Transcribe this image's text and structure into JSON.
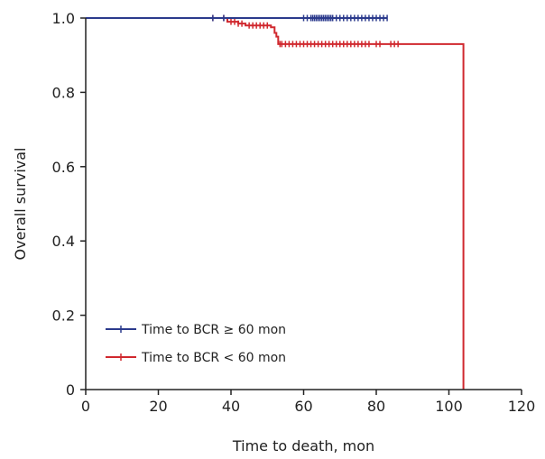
{
  "chart_data": {
    "type": "line",
    "xlabel": "Time to death, mon",
    "ylabel": "Overall survival",
    "xlim": [
      0,
      120
    ],
    "ylim": [
      0,
      1.0
    ],
    "x_ticks": [
      0,
      20,
      40,
      60,
      80,
      100,
      120
    ],
    "x_tick_labels": [
      "0",
      "20",
      "40",
      "60",
      "80",
      "100",
      "120"
    ],
    "y_ticks": [
      0,
      0.2,
      0.4,
      0.6,
      0.8,
      1.0
    ],
    "y_tick_labels": [
      "0",
      "0.2",
      "0.4",
      "0.6",
      "0.8",
      "1.0"
    ],
    "grid": false,
    "legend_position": "bottom-left",
    "series": [
      {
        "name": "Time to BCR ≥ 60 mon",
        "color": "#2b3a8c",
        "step_points": [
          [
            0,
            1.0
          ],
          [
            83,
            1.0
          ]
        ],
        "censor_times": [
          35,
          38,
          60,
          61,
          62,
          62.5,
          63,
          63.5,
          64,
          64.5,
          65,
          65.5,
          66,
          66.5,
          67,
          67.5,
          68,
          69,
          70,
          71,
          72,
          73,
          74,
          75,
          76,
          77,
          78,
          79,
          80,
          81,
          82,
          83
        ]
      },
      {
        "name": "Time to BCR < 60 mon",
        "color": "#d0282e",
        "step_points": [
          [
            0,
            1.0
          ],
          [
            39,
            1.0
          ],
          [
            39,
            0.99
          ],
          [
            42,
            0.99
          ],
          [
            42,
            0.985
          ],
          [
            44,
            0.985
          ],
          [
            44,
            0.98
          ],
          [
            51,
            0.98
          ],
          [
            51,
            0.975
          ],
          [
            52,
            0.975
          ],
          [
            52,
            0.96
          ],
          [
            52.5,
            0.96
          ],
          [
            52.5,
            0.95
          ],
          [
            53,
            0.95
          ],
          [
            53,
            0.93
          ],
          [
            104,
            0.93
          ],
          [
            104,
            0.0
          ]
        ],
        "censor_times": [
          35,
          38,
          40,
          41,
          42,
          43,
          45,
          46,
          47,
          48,
          49,
          50,
          53.5,
          54,
          55,
          56,
          57,
          58,
          59,
          60,
          61,
          62,
          63,
          64,
          65,
          66,
          67,
          68,
          69,
          70,
          71,
          72,
          73,
          74,
          75,
          76,
          77,
          78,
          80,
          81,
          84,
          85,
          86
        ]
      }
    ]
  }
}
